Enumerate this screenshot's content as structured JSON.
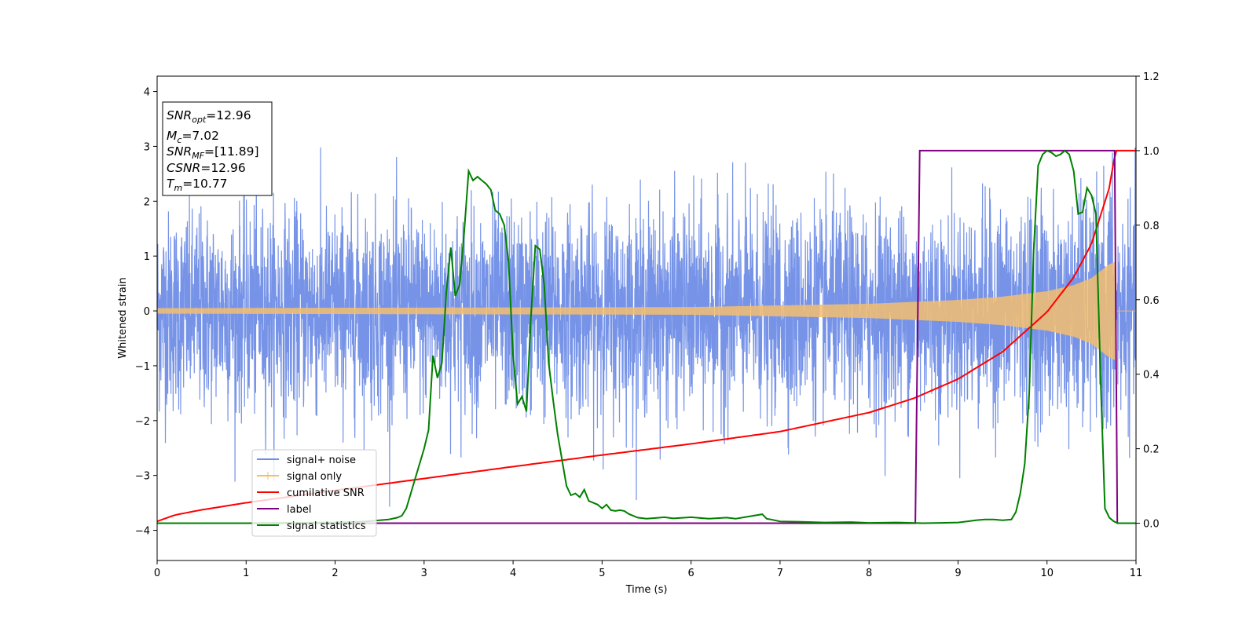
{
  "chart_data": {
    "type": "line",
    "xlabel": "Time (s)",
    "ylabel": "Whitened strain",
    "xlim": [
      0,
      11
    ],
    "ylim": [
      -4.55,
      4.28
    ],
    "y2lim": [
      -0.1,
      1.2
    ],
    "x_ticks": [
      "0",
      "1",
      "2",
      "3",
      "4",
      "5",
      "6",
      "7",
      "8",
      "9",
      "10",
      "11"
    ],
    "y_ticks": [
      "−4",
      "−3",
      "−2",
      "−1",
      "0",
      "1",
      "2",
      "3",
      "4"
    ],
    "y2_ticks": [
      "0.0",
      "0.2",
      "0.4",
      "0.6",
      "0.8",
      "1.0",
      "1.2"
    ],
    "grid": false,
    "legend_position": "lower-left",
    "info_box": {
      "lines": [
        {
          "sym": "SNR",
          "sub": "opt",
          "text": "=12.96"
        },
        {
          "sym": "M",
          "sub": "c",
          "text": "=7.02"
        },
        {
          "sym": "SNR",
          "sub": "MF",
          "text": "=[11.89]"
        },
        {
          "sym": "CSNR",
          "sub": "",
          "text": "=12.96"
        },
        {
          "sym": "T",
          "sub": "m",
          "text": "=10.77"
        }
      ]
    },
    "series": [
      {
        "name": "signal+ noise",
        "color": "#6f8de6",
        "axis": "left",
        "kind": "noise",
        "std": 1.1,
        "x_range": [
          0,
          11
        ]
      },
      {
        "name": "signal only",
        "color": "#f5be6e",
        "axis": "left",
        "kind": "chirp",
        "merger_time": 10.77,
        "envelope": {
          "x": [
            0,
            6,
            8,
            9,
            9.5,
            10,
            10.3,
            10.5,
            10.7,
            10.77
          ],
          "y": [
            0.05,
            0.07,
            0.13,
            0.2,
            0.26,
            0.36,
            0.47,
            0.6,
            0.85,
            0.9
          ]
        }
      },
      {
        "name": "cumilative SNR",
        "color": "#ff0000",
        "axis": "right",
        "x": [
          0,
          0.2,
          0.5,
          1,
          2,
          3,
          4,
          5,
          6,
          7,
          8,
          8.5,
          9,
          9.5,
          10,
          10.3,
          10.5,
          10.7,
          10.77,
          11
        ],
        "y": [
          0.005,
          0.022,
          0.036,
          0.055,
          0.088,
          0.12,
          0.152,
          0.183,
          0.213,
          0.246,
          0.297,
          0.335,
          0.387,
          0.46,
          0.567,
          0.66,
          0.75,
          0.9,
          1.0,
          1.0
        ]
      },
      {
        "name": "label",
        "color": "#800080",
        "axis": "right",
        "x": [
          0,
          8.52,
          8.57,
          10.76,
          10.79,
          11
        ],
        "y": [
          0,
          0,
          1,
          1,
          0,
          0
        ]
      },
      {
        "name": "signal statistics",
        "color": "#008000",
        "axis": "right",
        "x": [
          0,
          1,
          2,
          2.3,
          2.5,
          2.6,
          2.7,
          2.75,
          2.8,
          2.9,
          3.0,
          3.05,
          3.1,
          3.15,
          3.2,
          3.25,
          3.3,
          3.35,
          3.4,
          3.45,
          3.5,
          3.55,
          3.6,
          3.65,
          3.7,
          3.75,
          3.8,
          3.85,
          3.9,
          3.95,
          4.0,
          4.05,
          4.1,
          4.15,
          4.2,
          4.25,
          4.3,
          4.35,
          4.4,
          4.45,
          4.5,
          4.55,
          4.6,
          4.65,
          4.7,
          4.75,
          4.8,
          4.85,
          4.9,
          4.95,
          5.0,
          5.05,
          5.1,
          5.15,
          5.2,
          5.25,
          5.3,
          5.4,
          5.5,
          5.6,
          5.7,
          5.8,
          6.0,
          6.2,
          6.4,
          6.5,
          6.6,
          6.8,
          6.85,
          6.9,
          7.0,
          7.2,
          7.5,
          7.8,
          8.0,
          8.3,
          8.6,
          8.8,
          9.0,
          9.1,
          9.2,
          9.3,
          9.4,
          9.5,
          9.6,
          9.65,
          9.7,
          9.75,
          9.8,
          9.85,
          9.9,
          9.95,
          10.0,
          10.05,
          10.1,
          10.15,
          10.2,
          10.25,
          10.3,
          10.35,
          10.4,
          10.45,
          10.5,
          10.55,
          10.6,
          10.65,
          10.7,
          10.75,
          10.8,
          10.85,
          10.9,
          10.95,
          11.0
        ],
        "y": [
          0.0,
          0.0,
          0.002,
          0.004,
          0.008,
          0.01,
          0.015,
          0.02,
          0.04,
          0.12,
          0.2,
          0.25,
          0.45,
          0.39,
          0.43,
          0.62,
          0.74,
          0.61,
          0.64,
          0.78,
          0.945,
          0.92,
          0.93,
          0.92,
          0.91,
          0.895,
          0.84,
          0.83,
          0.8,
          0.7,
          0.45,
          0.32,
          0.34,
          0.3,
          0.55,
          0.745,
          0.735,
          0.64,
          0.43,
          0.33,
          0.24,
          0.17,
          0.1,
          0.075,
          0.08,
          0.07,
          0.09,
          0.06,
          0.055,
          0.05,
          0.04,
          0.05,
          0.035,
          0.033,
          0.035,
          0.033,
          0.025,
          0.015,
          0.012,
          0.014,
          0.016,
          0.013,
          0.016,
          0.012,
          0.015,
          0.012,
          0.016,
          0.024,
          0.012,
          0.01,
          0.005,
          0.004,
          0.002,
          0.003,
          0.001,
          0.002,
          0.0,
          0.001,
          0.002,
          0.005,
          0.008,
          0.01,
          0.01,
          0.008,
          0.01,
          0.03,
          0.08,
          0.16,
          0.35,
          0.73,
          0.96,
          0.99,
          1.0,
          0.995,
          0.985,
          0.99,
          1.0,
          0.99,
          0.945,
          0.83,
          0.835,
          0.9,
          0.88,
          0.83,
          0.4,
          0.04,
          0.015,
          0.005,
          0.0,
          0.0,
          0.0,
          0.0,
          0.0
        ]
      }
    ]
  }
}
